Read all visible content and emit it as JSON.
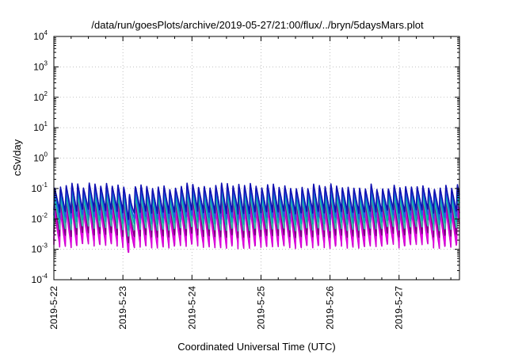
{
  "chart_data": {
    "type": "line",
    "title": "/data/run/goesPlots/archive/2019-05-27/21:00/flux/../bryn/5daysMars.plot",
    "xlabel": "Coordinated Universal Time (UTC)",
    "ylabel": "cSv/day",
    "yscale": "log",
    "ylim": [
      0.0001,
      10000
    ],
    "xlim": [
      "2019-05-22T00:00",
      "2019-05-27T21:00"
    ],
    "y_ticks": [
      {
        "base": "10",
        "exp": "-4"
      },
      {
        "base": "10",
        "exp": "-3"
      },
      {
        "base": "10",
        "exp": "-2"
      },
      {
        "base": "10",
        "exp": "-1"
      },
      {
        "base": "10",
        "exp": "0"
      },
      {
        "base": "10",
        "exp": "1"
      },
      {
        "base": "10",
        "exp": "2"
      },
      {
        "base": "10",
        "exp": "3"
      },
      {
        "base": "10",
        "exp": "4"
      }
    ],
    "x_ticks": [
      "2019-5-22",
      "2019-5-23",
      "2019-5-24",
      "2019-5-25",
      "2019-5-26",
      "2019-5-27"
    ],
    "grid": true,
    "legend": "none",
    "pattern": {
      "period_hours": 2,
      "peak_values": [
        0.12,
        0.09,
        0.065,
        0.045,
        0.032,
        0.02
      ],
      "trough_values": [
        0.018,
        0.011,
        0.007,
        0.0045,
        0.0028,
        0.0015
      ]
    },
    "series": [
      {
        "color": "#d000d0",
        "peak": 0.02,
        "trough": 0.0013
      },
      {
        "color": "#e000e0",
        "peak": 0.03,
        "trough": 0.0018
      },
      {
        "color": "#7a0080",
        "peak": 0.045,
        "trough": 0.003
      },
      {
        "color": "#3cc0a8",
        "peak": 0.06,
        "trough": 0.005
      },
      {
        "color": "#00b0b0",
        "peak": 0.08,
        "trough": 0.008
      },
      {
        "color": "#2060e0",
        "peak": 0.1,
        "trough": 0.012
      },
      {
        "color": "#1010b0",
        "peak": 0.13,
        "trough": 0.018
      }
    ],
    "dip": {
      "start": "2019-05-23T00:40",
      "end": "2019-05-23T04:30",
      "min": 0.0008
    }
  }
}
